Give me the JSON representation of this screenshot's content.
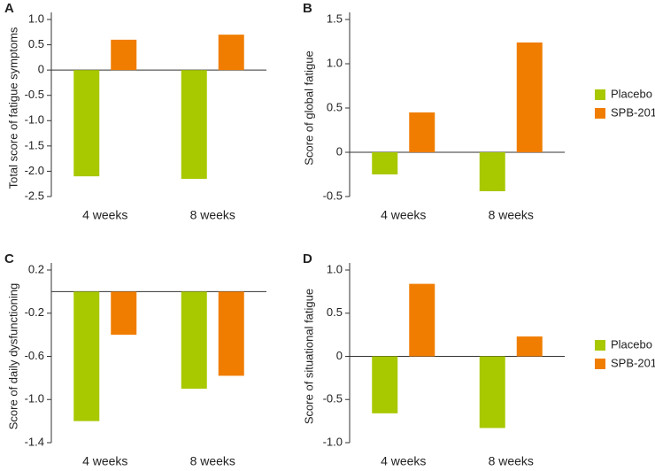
{
  "chart_data": [
    {
      "type": "bar",
      "label": "A",
      "ylabel": "Total score of fatigue symptoms",
      "categories": [
        "4 weeks",
        "8 weeks"
      ],
      "series": [
        {
          "color": "#a8c800",
          "values": [
            -2.1,
            -2.15
          ]
        },
        {
          "color": "#f07d00",
          "values": [
            0.6,
            0.7
          ]
        }
      ],
      "ylim": [
        -2.5,
        1.0
      ],
      "yticks": [
        {
          "value": 1.0,
          "label": "1.0"
        },
        0.5,
        0,
        -0.5,
        {
          "value": -1.0,
          "label": "-1.0"
        },
        -1.5,
        {
          "value": -2.0,
          "label": "-2.0"
        },
        -2.5
      ]
    },
    {
      "type": "bar",
      "label": "B",
      "ylabel": "Score of global fatigue",
      "categories": [
        "4 weeks",
        "8 weeks"
      ],
      "series": [
        {
          "name": "Placebo",
          "color": "#a8c800",
          "values": [
            -0.25,
            -0.44
          ]
        },
        {
          "name": "SPB-201",
          "color": "#f07d00",
          "values": [
            0.45,
            1.24
          ]
        }
      ],
      "ylim": [
        -0.5,
        1.5
      ],
      "yticks": [
        1.5,
        {
          "value": 1.0,
          "label": "1.0"
        },
        0.5,
        0,
        -0.5
      ],
      "legend": "right"
    },
    {
      "type": "bar",
      "label": "C",
      "ylabel": "Score of daily dysfunctioning",
      "categories": [
        "4 weeks",
        "8 weeks"
      ],
      "series": [
        {
          "color": "#a8c800",
          "values": [
            -1.2,
            -0.9
          ]
        },
        {
          "color": "#f07d00",
          "values": [
            -0.4,
            -0.78
          ]
        }
      ],
      "ylim": [
        -1.4,
        0.2
      ],
      "yticks": [
        0.2,
        -0.2,
        -0.6,
        {
          "value": -1.0,
          "label": "-1.0"
        },
        -1.4
      ]
    },
    {
      "type": "bar",
      "label": "D",
      "ylabel": "Score of situational fatigue",
      "categories": [
        "4 weeks",
        "8 weeks"
      ],
      "series": [
        {
          "name": "Placebo",
          "color": "#a8c800",
          "values": [
            -0.66,
            -0.83
          ]
        },
        {
          "name": "SPB-201",
          "color": "#f07d00",
          "values": [
            0.84,
            0.23
          ]
        }
      ],
      "ylim": [
        -1.0,
        1.0
      ],
      "yticks": [
        {
          "value": 1.0,
          "label": "1.0"
        },
        0.5,
        0,
        -0.5,
        {
          "value": -1.0,
          "label": "-1.0"
        }
      ],
      "legend": "right"
    }
  ]
}
